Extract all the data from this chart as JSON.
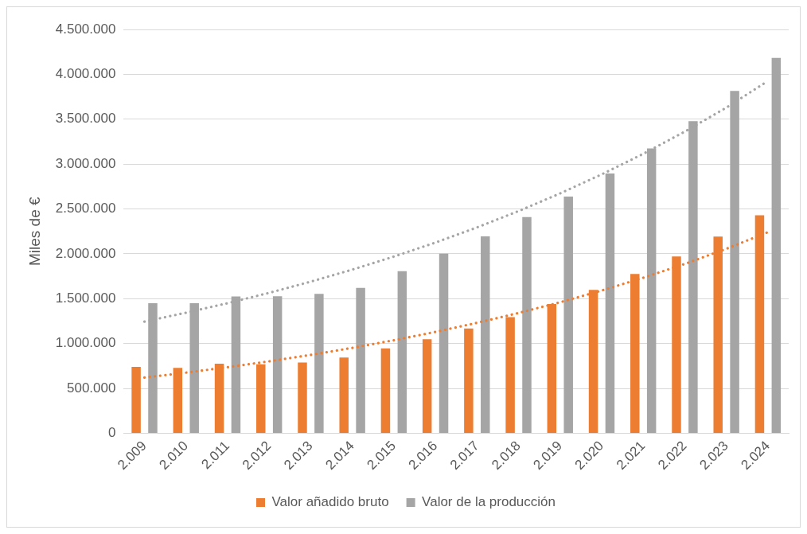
{
  "chart_data": {
    "type": "bar",
    "ylabel": "Miles de €",
    "categories": [
      "2.009",
      "2.010",
      "2.011",
      "2.012",
      "2.013",
      "2.014",
      "2.015",
      "2.016",
      "2.017",
      "2.018",
      "2.019",
      "2.020",
      "2.021",
      "2.022",
      "2.023",
      "2.024"
    ],
    "series": [
      {
        "name": "Valor añadido bruto",
        "color": "#ed7d31",
        "values": [
          740000,
          730000,
          776000,
          770000,
          789000,
          845000,
          947000,
          1049000,
          1168000,
          1294000,
          1440000,
          1599000,
          1776000,
          1971000,
          2192000,
          2430000
        ]
      },
      {
        "name": "Valor de la producción",
        "color": "#a5a5a5",
        "values": [
          1450000,
          1450000,
          1524000,
          1527000,
          1555000,
          1620000,
          1806000,
          2002000,
          2195000,
          2409000,
          2639000,
          2896000,
          3175000,
          3479000,
          3815000,
          4184000
        ]
      },
      {
        "type": "line",
        "line_style": "dotted",
        "marker": "none",
        "color": "#ed7d31",
        "values": [
          621000,
          676000,
          737000,
          802000,
          874000,
          952000,
          1037000,
          1130000,
          1231000,
          1341000,
          1460000,
          1591000,
          1733000,
          1887000,
          2056000,
          2241000
        ]
      },
      {
        "type": "line",
        "line_style": "dotted",
        "marker": "none",
        "color": "#a5a5a5",
        "values": [
          1245000,
          1344000,
          1450000,
          1565000,
          1690000,
          1824000,
          1969000,
          2125000,
          2294000,
          2476000,
          2673000,
          2885000,
          3114000,
          3362000,
          3629000,
          3926000
        ]
      }
    ],
    "ylim": [
      0,
      4500000
    ],
    "yticks": [
      0,
      {
        "value": 500000,
        "label": "500.000"
      },
      {
        "value": 1000000,
        "label": "1.000.000"
      },
      {
        "value": 1500000,
        "label": "1.500.000"
      },
      {
        "value": 2000000,
        "label": "2.000.000"
      },
      {
        "value": 2500000,
        "label": "2.500.000"
      },
      {
        "value": 3000000,
        "label": "3.000.000"
      },
      {
        "value": 3500000,
        "label": "3.500.000"
      },
      {
        "value": 4000000,
        "label": "4.000.000"
      },
      {
        "value": 4500000,
        "label": "4.500.000"
      }
    ],
    "grid": "y",
    "legend": "bottom"
  }
}
